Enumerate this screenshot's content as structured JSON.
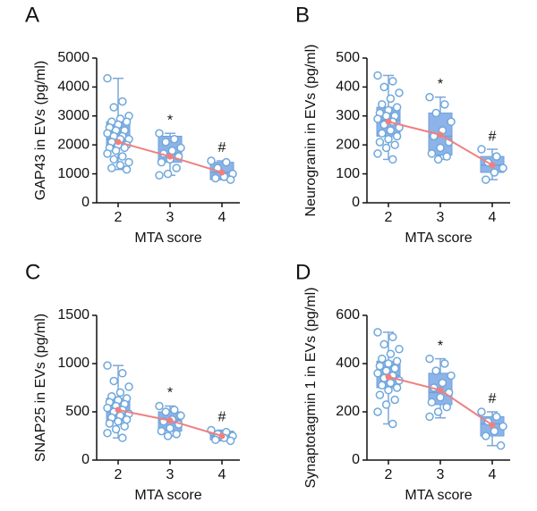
{
  "chart_data": [
    {
      "type": "box",
      "label": "A",
      "ylabel": "GAP43 in EVs (pg/ml)",
      "xlabel": "MTA score",
      "categories": [
        "2",
        "3",
        "4"
      ],
      "ylim": [
        0,
        5000
      ],
      "yticks": [
        0,
        1000,
        2000,
        3000,
        4000,
        5000
      ],
      "whisker_low": [
        1150,
        950,
        800
      ],
      "q1": [
        1900,
        1400,
        800
      ],
      "median": [
        2200,
        1700,
        1050
      ],
      "q3": [
        2800,
        2300,
        1400
      ],
      "whisker_high": [
        4300,
        2400,
        1450
      ],
      "mean": [
        2100,
        1600,
        1050
      ],
      "points": [
        [
          4300,
          3500,
          3300,
          3000,
          2900,
          2800,
          2800,
          2700,
          2600,
          2500,
          2500,
          2400,
          2300,
          2300,
          2200,
          2200,
          2100,
          2000,
          2000,
          1900,
          1900,
          1800,
          1700,
          1600,
          1500,
          1400,
          1300,
          1200,
          1150
        ],
        [
          2400,
          2200,
          2100,
          1900,
          1800,
          1700,
          1600,
          1500,
          1400,
          1200,
          1000,
          950
        ],
        [
          1450,
          1400,
          1200,
          1000,
          900,
          850,
          800
        ]
      ],
      "annotations": [
        null,
        "*",
        "#"
      ],
      "box_color": "#8db3e8",
      "point_color": "#6fa8dc",
      "mean_color": "#f08080"
    },
    {
      "type": "box",
      "label": "B",
      "ylabel": "Neurogranin in EVs (pg/ml)",
      "xlabel": "MTA score",
      "categories": [
        "2",
        "3",
        "4"
      ],
      "ylim": [
        0,
        500
      ],
      "yticks": [
        0,
        100,
        200,
        300,
        400,
        500
      ],
      "whisker_low": [
        150,
        150,
        80
      ],
      "q1": [
        230,
        165,
        105
      ],
      "median": [
        285,
        230,
        130
      ],
      "q3": [
        330,
        310,
        160
      ],
      "whisker_high": [
        440,
        365,
        185
      ],
      "mean": [
        280,
        235,
        130
      ],
      "points": [
        [
          440,
          420,
          400,
          380,
          360,
          340,
          330,
          320,
          310,
          300,
          300,
          290,
          280,
          270,
          260,
          250,
          240,
          230,
          220,
          210,
          200,
          190,
          170,
          150
        ],
        [
          365,
          340,
          310,
          280,
          250,
          230,
          210,
          190,
          170,
          160,
          150
        ],
        [
          185,
          160,
          140,
          120,
          105,
          80
        ]
      ],
      "annotations": [
        null,
        "*",
        "#"
      ],
      "box_color": "#8db3e8",
      "point_color": "#6fa8dc",
      "mean_color": "#f08080"
    },
    {
      "type": "box",
      "label": "C",
      "ylabel": "SNAP25 in EVs (pg/ml)",
      "xlabel": "MTA score",
      "categories": [
        "2",
        "3",
        "4"
      ],
      "ylim": [
        0,
        1500
      ],
      "yticks": [
        0,
        500,
        1000,
        1500
      ],
      "whisker_low": [
        230,
        250,
        200
      ],
      "q1": [
        400,
        300,
        210
      ],
      "median": [
        500,
        420,
        250
      ],
      "q3": [
        640,
        500,
        300
      ],
      "whisker_high": [
        980,
        560,
        310
      ],
      "mean": [
        520,
        410,
        250
      ],
      "points": [
        [
          980,
          900,
          820,
          760,
          700,
          660,
          640,
          620,
          600,
          580,
          560,
          540,
          520,
          500,
          480,
          460,
          440,
          420,
          400,
          380,
          350,
          320,
          280,
          230
        ],
        [
          560,
          520,
          500,
          460,
          420,
          400,
          370,
          330,
          300,
          270,
          250
        ],
        [
          310,
          290,
          270,
          250,
          230,
          210,
          200
        ]
      ],
      "annotations": [
        null,
        "*",
        "#"
      ],
      "box_color": "#8db3e8",
      "point_color": "#6fa8dc",
      "mean_color": "#f08080"
    },
    {
      "type": "box",
      "label": "D",
      "ylabel": "Synaptotagmin 1 in EVs (pg/ml)",
      "xlabel": "MTA score",
      "categories": [
        "2",
        "3",
        "4"
      ],
      "ylim": [
        0,
        600
      ],
      "yticks": [
        0,
        200,
        400,
        600
      ],
      "whisker_low": [
        150,
        175,
        60
      ],
      "q1": [
        300,
        230,
        100
      ],
      "median": [
        350,
        280,
        150
      ],
      "q3": [
        410,
        360,
        180
      ],
      "whisker_high": [
        530,
        420,
        200
      ],
      "mean": [
        345,
        290,
        145
      ],
      "points": [
        [
          530,
          510,
          480,
          460,
          440,
          420,
          410,
          400,
          390,
          380,
          370,
          360,
          350,
          340,
          330,
          320,
          310,
          300,
          290,
          270,
          250,
          230,
          200,
          150
        ],
        [
          420,
          400,
          370,
          350,
          320,
          300,
          280,
          260,
          240,
          220,
          200,
          180
        ],
        [
          200,
          180,
          160,
          140,
          120,
          100,
          60
        ]
      ],
      "annotations": [
        null,
        "*",
        "#"
      ],
      "box_color": "#8db3e8",
      "point_color": "#6fa8dc",
      "mean_color": "#f08080"
    }
  ]
}
